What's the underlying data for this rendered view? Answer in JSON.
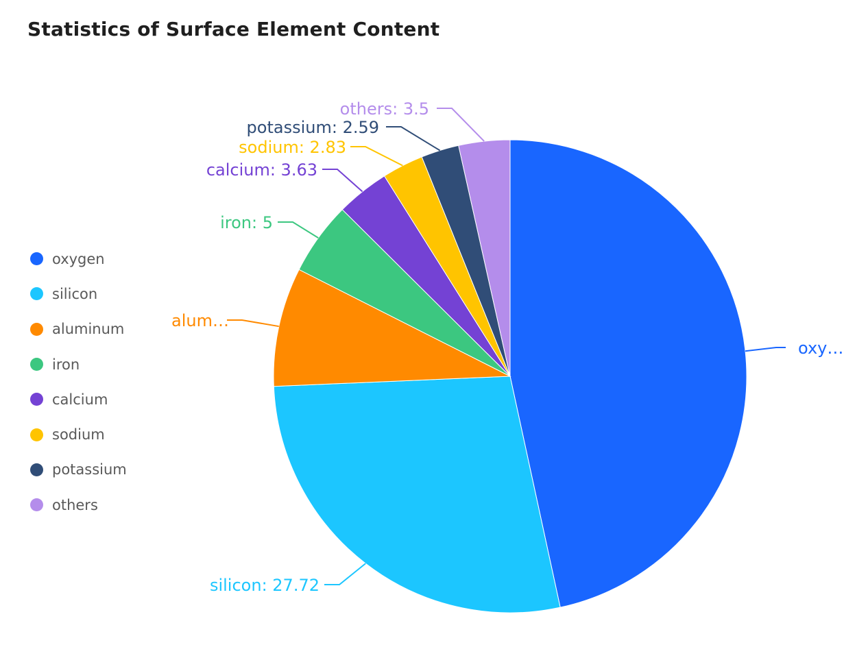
{
  "title": "Statistics of Surface Element Content",
  "chart_data": {
    "type": "pie",
    "title": "Statistics of Surface Element Content",
    "legend_position": "left",
    "slices": [
      {
        "name": "oxygen",
        "value": 46.6,
        "color": "#1966FF",
        "label": "oxy…"
      },
      {
        "name": "silicon",
        "value": 27.72,
        "color": "#1CC6FF",
        "label": "silicon: 27.72"
      },
      {
        "name": "aluminum",
        "value": 8.13,
        "color": "#FF8A00",
        "label": "alum…"
      },
      {
        "name": "iron",
        "value": 5,
        "color": "#3CC780",
        "label": "iron: 5"
      },
      {
        "name": "calcium",
        "value": 3.63,
        "color": "#7442D4",
        "label": "calcium: 3.63"
      },
      {
        "name": "sodium",
        "value": 2.83,
        "color": "#FFC400",
        "label": "sodium: 2.83"
      },
      {
        "name": "potassium",
        "value": 2.59,
        "color": "#304D77",
        "label": "potassium: 2.59"
      },
      {
        "name": "others",
        "value": 3.5,
        "color": "#B48DEB",
        "label": "others: 3.5"
      }
    ]
  }
}
